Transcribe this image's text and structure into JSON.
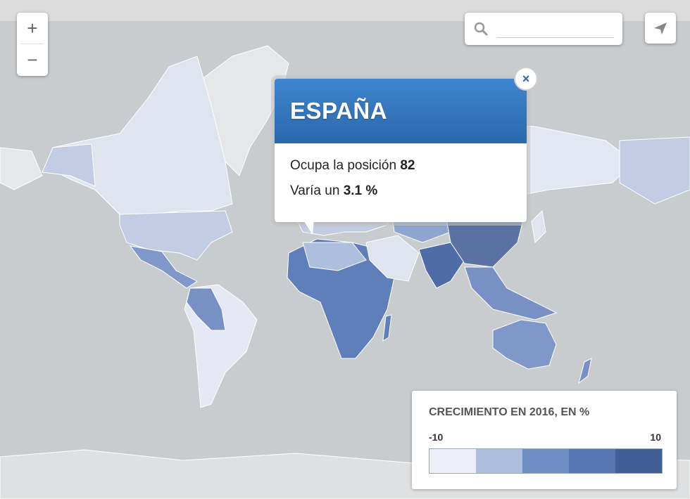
{
  "search": {
    "placeholder": ""
  },
  "zoom": {
    "in_label": "+",
    "out_label": "−"
  },
  "popup": {
    "country": "ESPAÑA",
    "rank_prefix": "Ocupa la posición",
    "rank_value": "82",
    "change_prefix": "Varía un",
    "change_value": "3.1 %",
    "close_label": "×"
  },
  "legend": {
    "title": "CRECIMIENTO EN 2016, EN %",
    "min": "-10",
    "max": "10",
    "colors": [
      "#eceff7",
      "#aebfde",
      "#6f8ec4",
      "#5676b2",
      "#415e97"
    ]
  },
  "colors": {
    "ocean": "#c9ccce",
    "land_no_data": "#e6e7e8",
    "brand": "#2b67ad"
  }
}
